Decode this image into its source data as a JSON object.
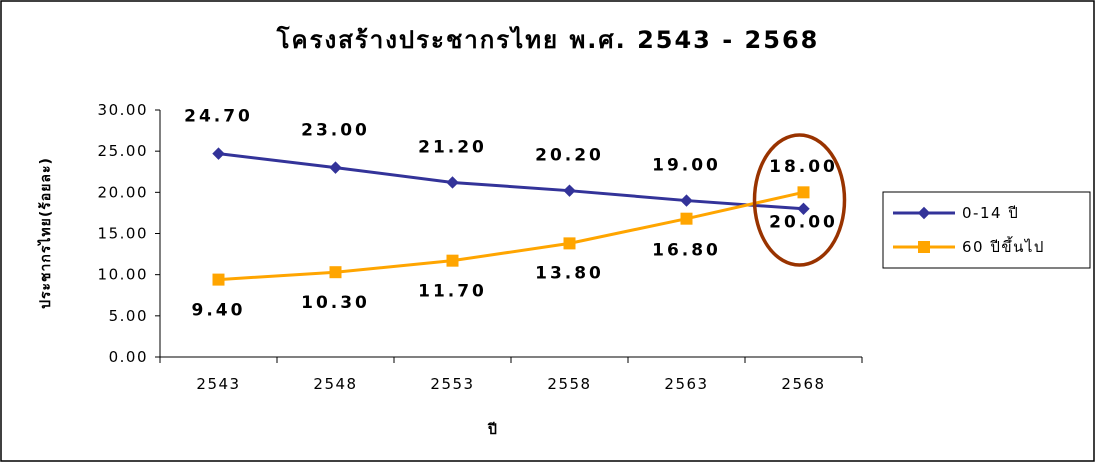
{
  "chart_data": {
    "type": "line",
    "title": "โครงสร้างประชากรไทย พ.ศ. 2543 - 2568",
    "xlabel": "ปี",
    "ylabel": "ประชากรไทย(ร้อยละ)",
    "categories": [
      "2543",
      "2548",
      "2553",
      "2558",
      "2563",
      "2568"
    ],
    "ylim": [
      0,
      30
    ],
    "yticks": [
      "0.00",
      "5.00",
      "10.00",
      "15.00",
      "20.00",
      "25.00",
      "30.00"
    ],
    "grid": false,
    "legend_position": "right",
    "series": [
      {
        "name": "0-14 ปี",
        "values": [
          24.7,
          23.0,
          21.2,
          20.2,
          19.0,
          18.0
        ],
        "labels": [
          "24.70",
          "23.00",
          "21.20",
          "20.20",
          "19.00",
          "18.00"
        ],
        "color": "#333399",
        "marker": "diamond"
      },
      {
        "name": "60 ปีขึ้นไป",
        "values": [
          9.4,
          10.3,
          11.7,
          13.8,
          16.8,
          20.0
        ],
        "labels": [
          "9.40",
          "10.30",
          "11.70",
          "13.80",
          "16.80",
          "20.00"
        ],
        "color": "#FFA500",
        "marker": "square"
      }
    ],
    "annotation": {
      "type": "ellipse",
      "category": "2568",
      "color": "#993300"
    }
  }
}
